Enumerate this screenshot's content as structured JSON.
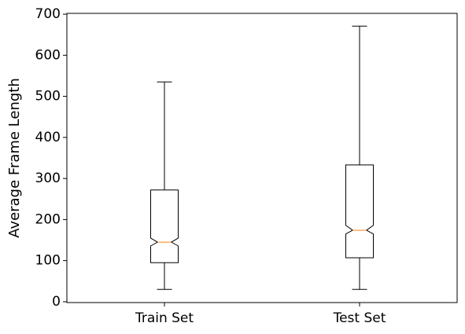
{
  "chart_data": {
    "type": "boxplot",
    "y_label": "Average Frame Length",
    "categories": [
      "Train Set",
      "Test Set"
    ],
    "boxes": [
      {
        "whislo": 30,
        "q1": 95,
        "notch_lo": 136,
        "med": 145,
        "notch_hi": 155,
        "q3": 272,
        "whishi": 535
      },
      {
        "whislo": 30,
        "q1": 107,
        "notch_lo": 165,
        "med": 174,
        "notch_hi": 186,
        "q3": 333,
        "whishi": 671
      }
    ],
    "box_color": "#000000",
    "median_color": "#ff7f0e",
    "ylim": [
      -2,
      702
    ],
    "yticks": [
      0,
      100,
      200,
      300,
      400,
      500,
      600,
      700
    ]
  }
}
